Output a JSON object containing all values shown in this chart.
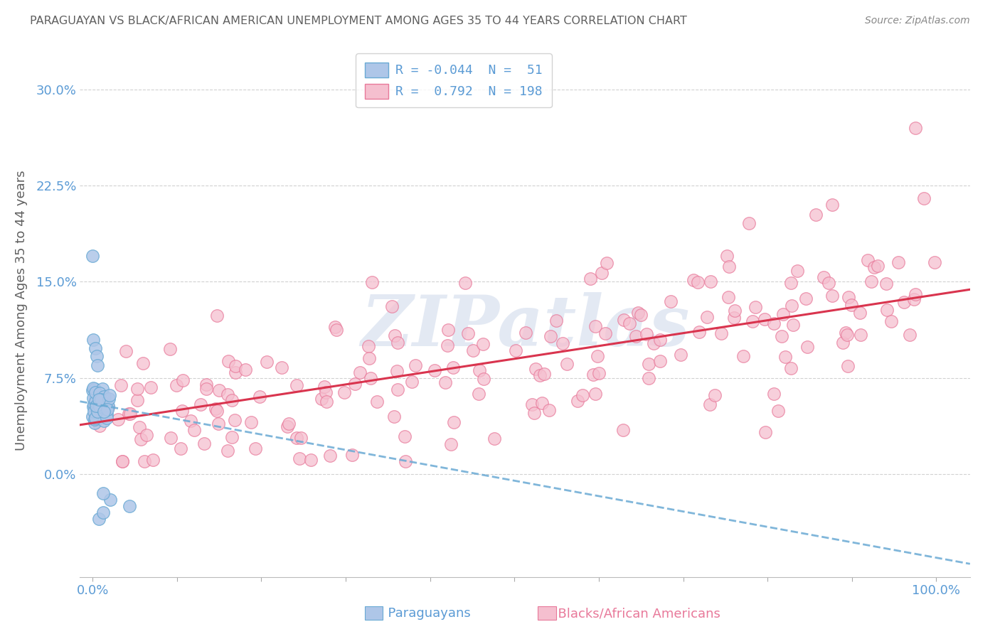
{
  "title": "PARAGUAYAN VS BLACK/AFRICAN AMERICAN UNEMPLOYMENT AMONG AGES 35 TO 44 YEARS CORRELATION CHART",
  "source": "Source: ZipAtlas.com",
  "ylabel": "Unemployment Among Ages 35 to 44 years",
  "xlim": [
    -0.015,
    1.04
  ],
  "ylim": [
    -0.08,
    0.335
  ],
  "yticks": [
    0.0,
    0.075,
    0.15,
    0.225,
    0.3
  ],
  "ytick_labels": [
    "0.0%",
    "7.5%",
    "15.0%",
    "22.5%",
    "30.0%"
  ],
  "xticks": [
    0.0,
    0.1,
    0.2,
    0.3,
    0.4,
    0.5,
    0.6,
    0.7,
    0.8,
    0.9,
    1.0
  ],
  "xtick_labels_show": [
    "0.0%",
    "",
    "",
    "",
    "",
    "",
    "",
    "",
    "",
    "",
    "100.0%"
  ],
  "background_color": "#ffffff",
  "grid_color": "#cccccc",
  "watermark_text": "ZIPatlas",
  "blue_scatter_color": "#aec6e8",
  "blue_scatter_edge": "#6aaad4",
  "pink_scatter_color": "#f5bfcf",
  "pink_scatter_edge": "#e8799a",
  "blue_line_color": "#6aaad4",
  "pink_line_color": "#d9344e",
  "blue_R": -0.044,
  "blue_N": 51,
  "pink_R": 0.792,
  "pink_N": 198,
  "title_color": "#606060",
  "axis_color": "#5b9bd5",
  "pink_label_color": "#e8799a",
  "legend_label_blue": "R = -0.044  N =  51",
  "legend_label_pink": "R =  0.792  N = 198",
  "legend_text_color": "#5b9bd5",
  "source_color": "#888888",
  "bottom_label_blue": "Paraguayans",
  "bottom_label_pink": "Blacks/African Americans"
}
